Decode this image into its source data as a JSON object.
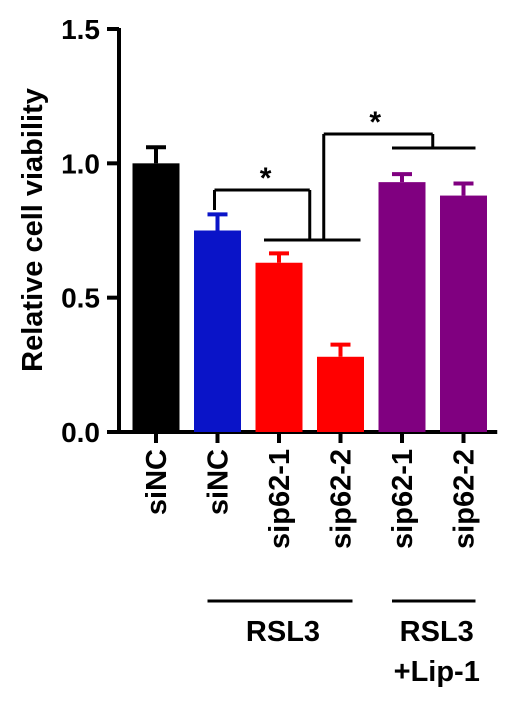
{
  "chart_data": {
    "type": "bar",
    "ylabel": "Relative cell viability",
    "ylim": [
      0,
      1.5
    ],
    "yticks": [
      0.0,
      0.5,
      1.0,
      1.5
    ],
    "ytick_labels": [
      "0.0",
      "0.5",
      "1.0",
      "1.5"
    ],
    "grid": false,
    "categories": [
      "siNC",
      "siNC",
      "sip62-1",
      "sip62-2",
      "sip62-1",
      "sip62-2"
    ],
    "values": [
      1.0,
      0.75,
      0.63,
      0.28,
      0.93,
      0.88
    ],
    "errors": [
      0.06,
      0.06,
      0.035,
      0.045,
      0.03,
      0.045
    ],
    "colors": [
      "#000000",
      "#0a14c8",
      "#ff0000",
      "#ff0000",
      "#800080",
      "#800080"
    ],
    "groups": [
      {
        "label_lines": [
          "RSL3"
        ],
        "start": 1,
        "end": 3
      },
      {
        "label_lines": [
          "RSL3",
          "+Lip-1"
        ],
        "start": 4,
        "end": 5
      }
    ],
    "significance": [
      {
        "label": "*",
        "kind": "bar_to_group",
        "bar": 1,
        "group": [
          2,
          3
        ]
      },
      {
        "label": "*",
        "kind": "group_to_group",
        "group_a": [
          2,
          3
        ],
        "group_b": [
          4,
          5
        ]
      }
    ]
  }
}
